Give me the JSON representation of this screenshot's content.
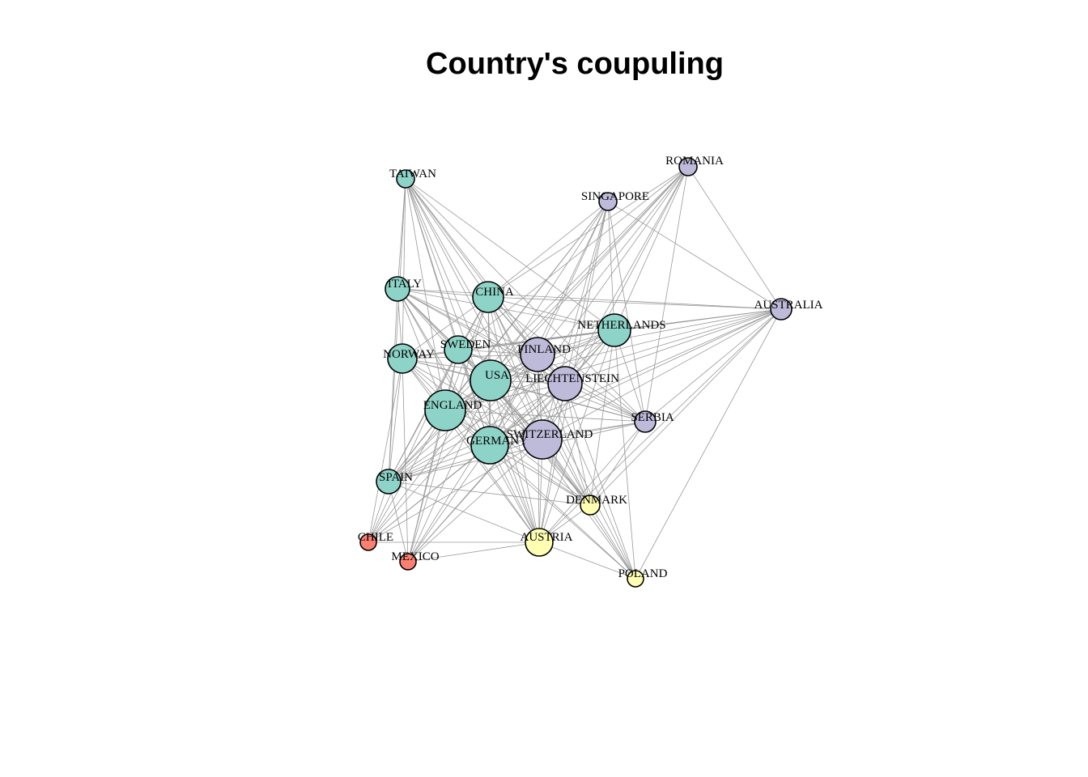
{
  "title": "Country's coupuling",
  "colors": {
    "green": "#8dd3c7",
    "purple": "#bebada",
    "yellow": "#ffffb3",
    "red": "#fb8072",
    "edge": "#9a9a9a"
  },
  "nodes": [
    {
      "id": "TAIWAN",
      "label": "TAIWAN",
      "group": "green"
    },
    {
      "id": "ROMANIA",
      "label": "ROMANIA",
      "group": "purple"
    },
    {
      "id": "SINGAPORE",
      "label": "SINGAPORE",
      "group": "purple"
    },
    {
      "id": "ITALY",
      "label": "ITALY",
      "group": "green"
    },
    {
      "id": "CHINA",
      "label": "CHINA",
      "group": "green"
    },
    {
      "id": "AUSTRALIA",
      "label": "AUSTRALIA",
      "group": "purple"
    },
    {
      "id": "NETHERLANDS",
      "label": "NETHERLANDS",
      "group": "green"
    },
    {
      "id": "NORWAY",
      "label": "NORWAY",
      "group": "green"
    },
    {
      "id": "SWEDEN",
      "label": "SWEDEN",
      "group": "green"
    },
    {
      "id": "FINLAND",
      "label": "FINLAND",
      "group": "purple"
    },
    {
      "id": "USA",
      "label": "USA",
      "group": "green"
    },
    {
      "id": "LIECHTENSTEIN",
      "label": "LIECHTENSTEIN",
      "group": "purple"
    },
    {
      "id": "ENGLAND",
      "label": "ENGLAND",
      "group": "green"
    },
    {
      "id": "SERBIA",
      "label": "SERBIA",
      "group": "purple"
    },
    {
      "id": "GERMANY",
      "label": "GERMANY",
      "group": "green"
    },
    {
      "id": "SWITZERLAND",
      "label": "SWITZERLAND",
      "group": "purple"
    },
    {
      "id": "SPAIN",
      "label": "SPAIN",
      "group": "green"
    },
    {
      "id": "DENMARK",
      "label": "DENMARK",
      "group": "yellow"
    },
    {
      "id": "CHILE",
      "label": "CHILE",
      "group": "red"
    },
    {
      "id": "AUSTRIA",
      "label": "AUSTRIA",
      "group": "yellow"
    },
    {
      "id": "MEXICO",
      "label": "MEXICO",
      "group": "red"
    },
    {
      "id": "POLAND",
      "label": "POLAND",
      "group": "yellow"
    }
  ],
  "edges": [
    [
      "TAIWAN",
      "ITALY"
    ],
    [
      "TAIWAN",
      "CHINA"
    ],
    [
      "TAIWAN",
      "NORWAY"
    ],
    [
      "TAIWAN",
      "SWEDEN"
    ],
    [
      "TAIWAN",
      "USA"
    ],
    [
      "TAIWAN",
      "ENGLAND"
    ],
    [
      "TAIWAN",
      "GERMANY"
    ],
    [
      "TAIWAN",
      "SWITZERLAND"
    ],
    [
      "TAIWAN",
      "FINLAND"
    ],
    [
      "TAIWAN",
      "LIECHTENSTEIN"
    ],
    [
      "TAIWAN",
      "AUSTRIA"
    ],
    [
      "TAIWAN",
      "DENMARK"
    ],
    [
      "TAIWAN",
      "SPAIN"
    ],
    [
      "TAIWAN",
      "SERBIA"
    ],
    [
      "TAIWAN",
      "NETHERLANDS"
    ],
    [
      "ROMANIA",
      "CHINA"
    ],
    [
      "ROMANIA",
      "NETHERLANDS"
    ],
    [
      "ROMANIA",
      "FINLAND"
    ],
    [
      "ROMANIA",
      "USA"
    ],
    [
      "ROMANIA",
      "LIECHTENSTEIN"
    ],
    [
      "ROMANIA",
      "SWITZERLAND"
    ],
    [
      "ROMANIA",
      "GERMANY"
    ],
    [
      "ROMANIA",
      "ENGLAND"
    ],
    [
      "ROMANIA",
      "AUSTRALIA"
    ],
    [
      "ROMANIA",
      "SERBIA"
    ],
    [
      "ROMANIA",
      "SWEDEN"
    ],
    [
      "ROMANIA",
      "SPAIN"
    ],
    [
      "SINGAPORE",
      "CHINA"
    ],
    [
      "SINGAPORE",
      "USA"
    ],
    [
      "SINGAPORE",
      "FINLAND"
    ],
    [
      "SINGAPORE",
      "LIECHTENSTEIN"
    ],
    [
      "SINGAPORE",
      "SWITZERLAND"
    ],
    [
      "SINGAPORE",
      "GERMANY"
    ],
    [
      "SINGAPORE",
      "ENGLAND"
    ],
    [
      "SINGAPORE",
      "NETHERLANDS"
    ],
    [
      "SINGAPORE",
      "AUSTRALIA"
    ],
    [
      "SINGAPORE",
      "SERBIA"
    ],
    [
      "SINGAPORE",
      "AUSTRIA"
    ],
    [
      "SINGAPORE",
      "SPAIN"
    ],
    [
      "ITALY",
      "CHINA"
    ],
    [
      "ITALY",
      "USA"
    ],
    [
      "ITALY",
      "FINLAND"
    ],
    [
      "ITALY",
      "LIECHTENSTEIN"
    ],
    [
      "ITALY",
      "SWITZERLAND"
    ],
    [
      "ITALY",
      "GERMANY"
    ],
    [
      "ITALY",
      "ENGLAND"
    ],
    [
      "ITALY",
      "AUSTRALIA"
    ],
    [
      "ITALY",
      "NETHERLANDS"
    ],
    [
      "ITALY",
      "SERBIA"
    ],
    [
      "ITALY",
      "SWEDEN"
    ],
    [
      "ITALY",
      "NORWAY"
    ],
    [
      "ITALY",
      "SPAIN"
    ],
    [
      "ITALY",
      "AUSTRIA"
    ],
    [
      "ITALY",
      "DENMARK"
    ],
    [
      "CHINA",
      "AUSTRALIA"
    ],
    [
      "CHINA",
      "NETHERLANDS"
    ],
    [
      "CHINA",
      "USA"
    ],
    [
      "CHINA",
      "FINLAND"
    ],
    [
      "CHINA",
      "LIECHTENSTEIN"
    ],
    [
      "CHINA",
      "SWITZERLAND"
    ],
    [
      "CHINA",
      "GERMANY"
    ],
    [
      "CHINA",
      "ENGLAND"
    ],
    [
      "CHINA",
      "SERBIA"
    ],
    [
      "CHINA",
      "NORWAY"
    ],
    [
      "CHINA",
      "SWEDEN"
    ],
    [
      "CHINA",
      "SPAIN"
    ],
    [
      "CHINA",
      "AUSTRIA"
    ],
    [
      "CHINA",
      "DENMARK"
    ],
    [
      "CHINA",
      "POLAND"
    ],
    [
      "CHINA",
      "MEXICO"
    ],
    [
      "AUSTRALIA",
      "NETHERLANDS"
    ],
    [
      "AUSTRALIA",
      "FINLAND"
    ],
    [
      "AUSTRALIA",
      "LIECHTENSTEIN"
    ],
    [
      "AUSTRALIA",
      "USA"
    ],
    [
      "AUSTRALIA",
      "SWITZERLAND"
    ],
    [
      "AUSTRALIA",
      "GERMANY"
    ],
    [
      "AUSTRALIA",
      "ENGLAND"
    ],
    [
      "AUSTRALIA",
      "SWEDEN"
    ],
    [
      "AUSTRALIA",
      "NORWAY"
    ],
    [
      "AUSTRALIA",
      "SERBIA"
    ],
    [
      "AUSTRALIA",
      "SPAIN"
    ],
    [
      "AUSTRALIA",
      "DENMARK"
    ],
    [
      "AUSTRALIA",
      "POLAND"
    ],
    [
      "AUSTRALIA",
      "AUSTRIA"
    ],
    [
      "NETHERLANDS",
      "USA"
    ],
    [
      "NETHERLANDS",
      "ENGLAND"
    ],
    [
      "NETHERLANDS",
      "GERMANY"
    ],
    [
      "NETHERLANDS",
      "SWITZERLAND"
    ],
    [
      "NETHERLANDS",
      "FINLAND"
    ],
    [
      "NETHERLANDS",
      "LIECHTENSTEIN"
    ],
    [
      "NETHERLANDS",
      "SWEDEN"
    ],
    [
      "NETHERLANDS",
      "NORWAY"
    ],
    [
      "NETHERLANDS",
      "SPAIN"
    ],
    [
      "NETHERLANDS",
      "SERBIA"
    ],
    [
      "NETHERLANDS",
      "DENMARK"
    ],
    [
      "NETHERLANDS",
      "AUSTRIA"
    ],
    [
      "NETHERLANDS",
      "POLAND"
    ],
    [
      "NETHERLANDS",
      "MEXICO"
    ],
    [
      "NORWAY",
      "SWEDEN"
    ],
    [
      "NORWAY",
      "USA"
    ],
    [
      "NORWAY",
      "ENGLAND"
    ],
    [
      "NORWAY",
      "GERMANY"
    ],
    [
      "NORWAY",
      "FINLAND"
    ],
    [
      "NORWAY",
      "LIECHTENSTEIN"
    ],
    [
      "NORWAY",
      "SWITZERLAND"
    ],
    [
      "NORWAY",
      "SERBIA"
    ],
    [
      "NORWAY",
      "SPAIN"
    ],
    [
      "NORWAY",
      "MEXICO"
    ],
    [
      "NORWAY",
      "AUSTRIA"
    ],
    [
      "NORWAY",
      "DENMARK"
    ],
    [
      "NORWAY",
      "CHILE"
    ],
    [
      "SWEDEN",
      "USA"
    ],
    [
      "SWEDEN",
      "ENGLAND"
    ],
    [
      "SWEDEN",
      "GERMANY"
    ],
    [
      "SWEDEN",
      "FINLAND"
    ],
    [
      "SWEDEN",
      "LIECHTENSTEIN"
    ],
    [
      "SWEDEN",
      "SWITZERLAND"
    ],
    [
      "SWEDEN",
      "SERBIA"
    ],
    [
      "SWEDEN",
      "SPAIN"
    ],
    [
      "SWEDEN",
      "AUSTRIA"
    ],
    [
      "SWEDEN",
      "DENMARK"
    ],
    [
      "SWEDEN",
      "CHILE"
    ],
    [
      "SWEDEN",
      "MEXICO"
    ],
    [
      "FINLAND",
      "USA"
    ],
    [
      "FINLAND",
      "LIECHTENSTEIN"
    ],
    [
      "FINLAND",
      "ENGLAND"
    ],
    [
      "FINLAND",
      "GERMANY"
    ],
    [
      "FINLAND",
      "SWITZERLAND"
    ],
    [
      "FINLAND",
      "SERBIA"
    ],
    [
      "FINLAND",
      "SPAIN"
    ],
    [
      "FINLAND",
      "DENMARK"
    ],
    [
      "FINLAND",
      "AUSTRIA"
    ],
    [
      "FINLAND",
      "POLAND"
    ],
    [
      "FINLAND",
      "MEXICO"
    ],
    [
      "FINLAND",
      "CHILE"
    ],
    [
      "USA",
      "LIECHTENSTEIN"
    ],
    [
      "USA",
      "ENGLAND"
    ],
    [
      "USA",
      "GERMANY"
    ],
    [
      "USA",
      "SWITZERLAND"
    ],
    [
      "USA",
      "SERBIA"
    ],
    [
      "USA",
      "SPAIN"
    ],
    [
      "USA",
      "DENMARK"
    ],
    [
      "USA",
      "AUSTRIA"
    ],
    [
      "USA",
      "POLAND"
    ],
    [
      "USA",
      "MEXICO"
    ],
    [
      "USA",
      "CHILE"
    ],
    [
      "LIECHTENSTEIN",
      "ENGLAND"
    ],
    [
      "LIECHTENSTEIN",
      "GERMANY"
    ],
    [
      "LIECHTENSTEIN",
      "SWITZERLAND"
    ],
    [
      "LIECHTENSTEIN",
      "SERBIA"
    ],
    [
      "LIECHTENSTEIN",
      "SPAIN"
    ],
    [
      "LIECHTENSTEIN",
      "DENMARK"
    ],
    [
      "LIECHTENSTEIN",
      "AUSTRIA"
    ],
    [
      "LIECHTENSTEIN",
      "POLAND"
    ],
    [
      "LIECHTENSTEIN",
      "MEXICO"
    ],
    [
      "LIECHTENSTEIN",
      "CHILE"
    ],
    [
      "ENGLAND",
      "GERMANY"
    ],
    [
      "ENGLAND",
      "SWITZERLAND"
    ],
    [
      "ENGLAND",
      "SERBIA"
    ],
    [
      "ENGLAND",
      "SPAIN"
    ],
    [
      "ENGLAND",
      "DENMARK"
    ],
    [
      "ENGLAND",
      "AUSTRIA"
    ],
    [
      "ENGLAND",
      "CHILE"
    ],
    [
      "ENGLAND",
      "MEXICO"
    ],
    [
      "ENGLAND",
      "POLAND"
    ],
    [
      "GERMANY",
      "SWITZERLAND"
    ],
    [
      "GERMANY",
      "SERBIA"
    ],
    [
      "GERMANY",
      "SPAIN"
    ],
    [
      "GERMANY",
      "DENMARK"
    ],
    [
      "GERMANY",
      "AUSTRIA"
    ],
    [
      "GERMANY",
      "CHILE"
    ],
    [
      "GERMANY",
      "MEXICO"
    ],
    [
      "GERMANY",
      "POLAND"
    ],
    [
      "SWITZERLAND",
      "SERBIA"
    ],
    [
      "SWITZERLAND",
      "SPAIN"
    ],
    [
      "SWITZERLAND",
      "DENMARK"
    ],
    [
      "SWITZERLAND",
      "AUSTRIA"
    ],
    [
      "SWITZERLAND",
      "POLAND"
    ],
    [
      "SWITZERLAND",
      "MEXICO"
    ],
    [
      "SWITZERLAND",
      "CHILE"
    ],
    [
      "SERBIA",
      "DENMARK"
    ],
    [
      "SERBIA",
      "AUSTRIA"
    ],
    [
      "SERBIA",
      "SPAIN"
    ],
    [
      "SPAIN",
      "AUSTRIA"
    ],
    [
      "SPAIN",
      "DENMARK"
    ],
    [
      "SPAIN",
      "CHILE"
    ],
    [
      "SPAIN",
      "MEXICO"
    ],
    [
      "DENMARK",
      "AUSTRIA"
    ],
    [
      "DENMARK",
      "POLAND"
    ],
    [
      "CHILE",
      "AUSTRIA"
    ],
    [
      "MEXICO",
      "AUSTRIA"
    ],
    [
      "AUSTRIA",
      "POLAND"
    ]
  ]
}
